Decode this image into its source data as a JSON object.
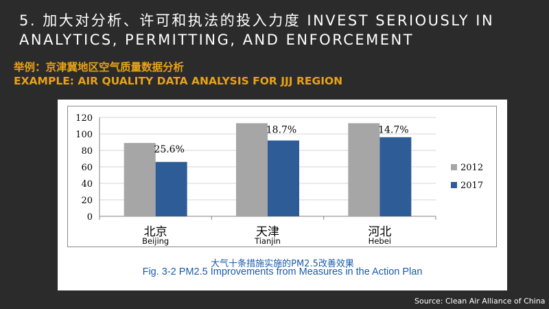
{
  "slide": {
    "title": "5. 加大对分析、许可和执法的投入力度 INVEST SERIOUSLY IN ANALYTICS, PERMITTING, AND ENFORCEMENT",
    "subtitle_zh": "举例：京津冀地区空气质量数据分析",
    "subtitle_en": "EXAMPLE: AIR QUALITY DATA ANALYSIS FOR JJJ REGION",
    "source": "Source: Clean Air Alliance of China"
  },
  "figure": {
    "caption_zh": "大气十条措施实施的PM2.5改善效果",
    "caption_en": "Fig. 3-2  PM2.5 Improvements from Measures in the Action Plan"
  },
  "chart_data": {
    "type": "bar",
    "categories": [
      "北京",
      "天津",
      "河北"
    ],
    "category_sublabels": [
      "Beijing",
      "Tianjin",
      "Hebei"
    ],
    "series": [
      {
        "name": "2012",
        "values": [
          89,
          113,
          113
        ],
        "color": "#a6a6a6"
      },
      {
        "name": "2017",
        "values": [
          66,
          92,
          96
        ],
        "color": "#2e5c97"
      }
    ],
    "annotations": [
      "25.6%",
      "18.7%",
      "14.7%"
    ],
    "ylim": [
      0,
      120
    ],
    "yticks": [
      0,
      20,
      40,
      60,
      80,
      100,
      120
    ],
    "grid": true,
    "legend_position": "right"
  }
}
